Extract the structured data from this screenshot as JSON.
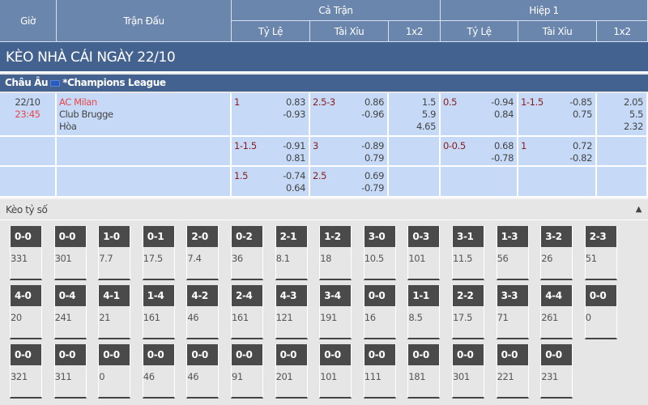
{
  "header": {
    "time": "Giờ",
    "match": "Trận Đấu",
    "full": "Cả Trận",
    "half": "Hiệp 1",
    "handicap": "Tỷ Lệ",
    "ou": "Tài Xỉu",
    "x12": "1x2"
  },
  "title": "KÈO NHÀ CÁI NGÀY 22/10",
  "league": {
    "region": "Châu Âu",
    "name": "*Champions League"
  },
  "match": {
    "date": "22/10",
    "time": "23:45",
    "home": "AC Milan",
    "away": "Club Brugge",
    "draw": "Hòa"
  },
  "rows": [
    {
      "ft_hdp": "1",
      "ft_hdp_o": [
        "0.83",
        "-0.93"
      ],
      "ft_ou": "2.5-3",
      "ft_ou_o": [
        "0.86",
        "-0.96"
      ],
      "ft_1x2": [
        "1.5",
        "5.9",
        "4.65"
      ],
      "h1_hdp": "0.5",
      "h1_hdp_o": [
        "-0.94",
        "0.84"
      ],
      "h1_ou": "1-1.5",
      "h1_ou_o": [
        "-0.85",
        "0.75"
      ],
      "h1_1x2": [
        "2.05",
        "5.5",
        "2.32"
      ]
    },
    {
      "ft_hdp": "1-1.5",
      "ft_hdp_o": [
        "-0.91",
        "0.81"
      ],
      "ft_ou": "3",
      "ft_ou_o": [
        "-0.89",
        "0.79"
      ],
      "h1_hdp": "0-0.5",
      "h1_hdp_o": [
        "0.68",
        "-0.78"
      ],
      "h1_ou": "1",
      "h1_ou_o": [
        "0.72",
        "-0.82"
      ]
    },
    {
      "ft_hdp": "1.5",
      "ft_hdp_o": [
        "-0.74",
        "0.64"
      ],
      "ft_ou": "2.5",
      "ft_ou_o": [
        "0.69",
        "-0.79"
      ]
    }
  ],
  "score_odds": {
    "title": "Kèo tỷ số",
    "collapse_icon": "triangle-up-icon",
    "items": [
      {
        "s": "0-0",
        "v": "331"
      },
      {
        "s": "0-0",
        "v": "301"
      },
      {
        "s": "1-0",
        "v": "7.7"
      },
      {
        "s": "0-1",
        "v": "17.5"
      },
      {
        "s": "2-0",
        "v": "7.4"
      },
      {
        "s": "0-2",
        "v": "36"
      },
      {
        "s": "2-1",
        "v": "8.1"
      },
      {
        "s": "1-2",
        "v": "18"
      },
      {
        "s": "3-0",
        "v": "10.5"
      },
      {
        "s": "0-3",
        "v": "101"
      },
      {
        "s": "3-1",
        "v": "11.5"
      },
      {
        "s": "1-3",
        "v": "56"
      },
      {
        "s": "3-2",
        "v": "26"
      },
      {
        "s": "2-3",
        "v": "51"
      },
      {
        "s": "4-0",
        "v": "20"
      },
      {
        "s": "0-4",
        "v": "241"
      },
      {
        "s": "4-1",
        "v": "21"
      },
      {
        "s": "1-4",
        "v": "161"
      },
      {
        "s": "4-2",
        "v": "46"
      },
      {
        "s": "2-4",
        "v": "161"
      },
      {
        "s": "4-3",
        "v": "121"
      },
      {
        "s": "3-4",
        "v": "191"
      },
      {
        "s": "0-0",
        "v": "16"
      },
      {
        "s": "1-1",
        "v": "8.5"
      },
      {
        "s": "2-2",
        "v": "17.5"
      },
      {
        "s": "3-3",
        "v": "71"
      },
      {
        "s": "4-4",
        "v": "261"
      },
      {
        "s": "0-0",
        "v": "0"
      },
      {
        "s": "0-0",
        "v": "321"
      },
      {
        "s": "0-0",
        "v": "311"
      },
      {
        "s": "0-0",
        "v": "0"
      },
      {
        "s": "0-0",
        "v": "46"
      },
      {
        "s": "0-0",
        "v": "46"
      },
      {
        "s": "0-0",
        "v": "91"
      },
      {
        "s": "0-0",
        "v": "201"
      },
      {
        "s": "0-0",
        "v": "101"
      },
      {
        "s": "0-0",
        "v": "111"
      },
      {
        "s": "0-0",
        "v": "181"
      },
      {
        "s": "0-0",
        "v": "301"
      },
      {
        "s": "0-0",
        "v": "221"
      },
      {
        "s": "0-0",
        "v": "231"
      }
    ]
  }
}
